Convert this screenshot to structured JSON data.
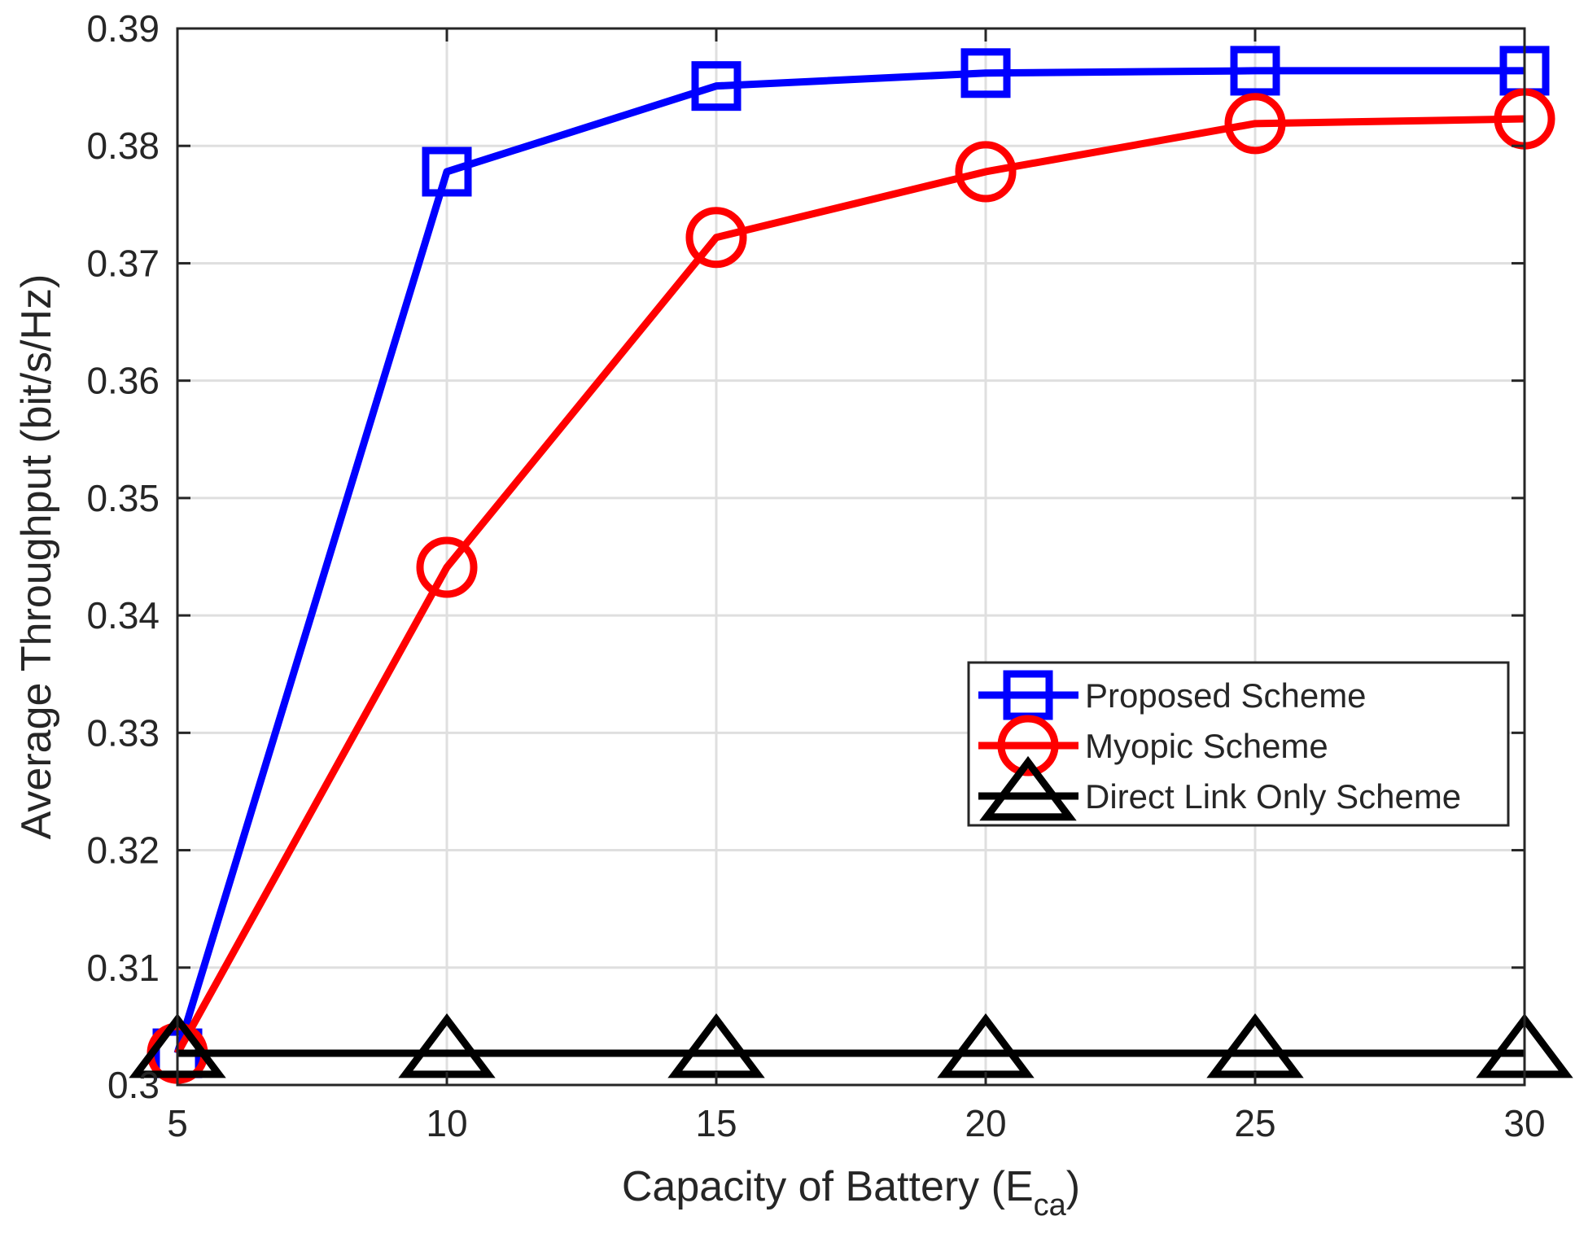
{
  "chart_data": {
    "type": "line",
    "xlabel": {
      "main": "Capacity of Battery (E",
      "subscript": "ca",
      "close": ")"
    },
    "ylabel": "Average Throughput (bit/s/Hz)",
    "x": [
      5,
      10,
      15,
      20,
      25,
      30
    ],
    "xlim": [
      5,
      30
    ],
    "ylim": [
      0.3,
      0.39
    ],
    "xticks": [
      5,
      10,
      15,
      20,
      25,
      30
    ],
    "xtick_labels": [
      "5",
      "10",
      "15",
      "20",
      "25",
      "30"
    ],
    "yticks": [
      0.3,
      0.31,
      0.32,
      0.33,
      0.34,
      0.35,
      0.36,
      0.37,
      0.38,
      0.39
    ],
    "ytick_labels": [
      "0.3",
      "0.31",
      "0.32",
      "0.33",
      "0.34",
      "0.35",
      "0.36",
      "0.37",
      "0.38",
      "0.39"
    ],
    "grid": true,
    "legend_position": "right-middle",
    "series": [
      {
        "name": "Proposed Scheme",
        "color": "#0000ff",
        "marker": "square",
        "values": [
          0.3027,
          0.3778,
          0.3851,
          0.3862,
          0.3864,
          0.3864
        ]
      },
      {
        "name": "Myopic Scheme",
        "color": "#ff0000",
        "marker": "circle",
        "values": [
          0.3027,
          0.3441,
          0.3722,
          0.3778,
          0.3819,
          0.3823
        ]
      },
      {
        "name": "Direct Link Only Scheme",
        "color": "#000000",
        "marker": "triangle",
        "values": [
          0.3027,
          0.3027,
          0.3027,
          0.3027,
          0.3027,
          0.3027
        ]
      }
    ]
  }
}
